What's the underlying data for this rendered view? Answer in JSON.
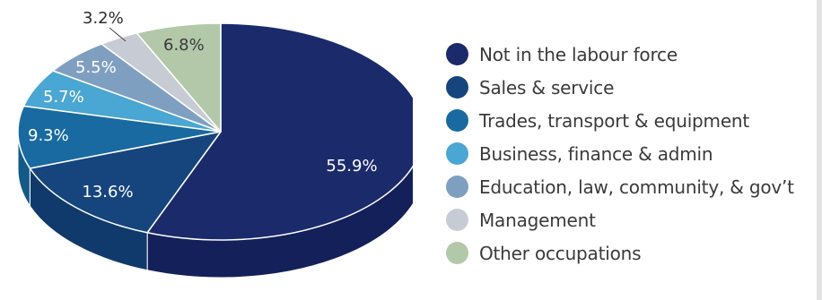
{
  "chart_data": {
    "type": "pie",
    "style": "3d",
    "legend_position": "right",
    "series": [
      {
        "name": "Not in the labour force",
        "value": 55.9,
        "label": "55.9%",
        "color": "#1b2a6b",
        "side": "#14205a"
      },
      {
        "name": "Sales & service",
        "value": 13.6,
        "label": "13.6%",
        "color": "#16457e",
        "side": "#113a6c"
      },
      {
        "name": "Trades, transport & equipment",
        "value": 9.3,
        "label": "9.3%",
        "color": "#196aa0",
        "side": "#145a88"
      },
      {
        "name": "Business, finance & admin",
        "value": 5.7,
        "label": "5.7%",
        "color": "#4aa6d2",
        "side": "#3a90bb"
      },
      {
        "name": "Education, law, community, & gov’t",
        "value": 5.5,
        "label": "5.5%",
        "color": "#7f9fc1",
        "side": "#6c8bad"
      },
      {
        "name": "Management",
        "value": 3.2,
        "label": "3.2%",
        "color": "#c7ccd4",
        "side": "#b0b6c0"
      },
      {
        "name": "Other occupations",
        "value": 6.8,
        "label": "6.8%",
        "color": "#b2c8a8",
        "side": "#9cb392"
      }
    ]
  }
}
